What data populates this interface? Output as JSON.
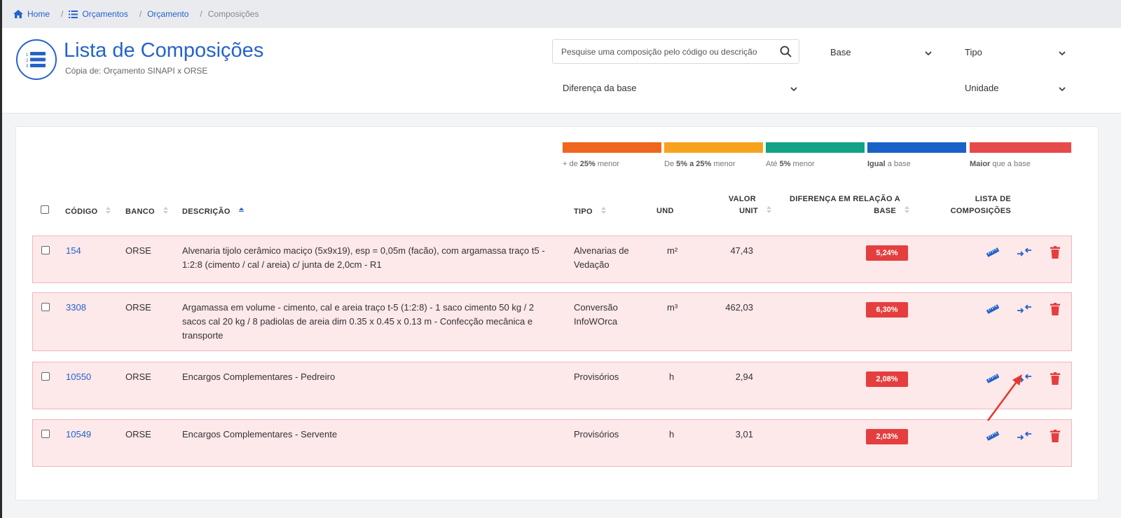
{
  "breadcrumb": [
    {
      "label": "Home",
      "icon": "home-icon"
    },
    {
      "label": "Orçamentos",
      "icon": "list-icon"
    },
    {
      "label": "Orçamento"
    },
    {
      "label": "Composições"
    }
  ],
  "header": {
    "title": "Lista de Composições",
    "subtitle": "Cópia de: Orçamento SINAPI x ORSE"
  },
  "search": {
    "placeholder": "Pesquise uma composição pelo código ou descrição"
  },
  "filters": {
    "base": "Base",
    "tipo": "Tipo",
    "diferenca": "Diferença da base",
    "unidade": "Unidade"
  },
  "legend": [
    {
      "pre": "+ de ",
      "bold": "25%",
      "post": " menor",
      "color": "#f0661e"
    },
    {
      "pre": "De ",
      "bold": "5% a 25%",
      "post": " menor",
      "color": "#f7a21c"
    },
    {
      "pre": "Até ",
      "bold": "5%",
      "post": " menor",
      "color": "#12a386"
    },
    {
      "pre": "",
      "bold": "Igual",
      "post": " a base",
      "color": "#1a62c8"
    },
    {
      "pre": "",
      "bold": "Maior",
      "post": " que a base",
      "color": "#e74a4a"
    }
  ],
  "columns": {
    "codigo": "CÓDIGO",
    "banco": "BANCO",
    "descricao": "DESCRIÇÃO",
    "tipo": "TIPO",
    "und": "UND",
    "valor_unit_1": "VALOR",
    "valor_unit_2": "UNIT",
    "diferenca_1": "DIFERENÇA EM RELAÇÃO A",
    "diferenca_2": "BASE",
    "lista_1": "LISTA DE",
    "lista_2": "COMPOSIÇÕES"
  },
  "rows": [
    {
      "codigo": "154",
      "banco": "ORSE",
      "descricao": [
        "Alvenaria tijolo cerâmico maciço (5x9x19), esp = 0,05m (facão), com argamassa traço t5 -",
        "1:2:8 (cimento / cal / areia) c/ junta de 2,0cm - R1"
      ],
      "tipo": [
        "Alvenarias de",
        "Vedação"
      ],
      "und": "m²",
      "valor": "47,43",
      "diferenca": "5,24%"
    },
    {
      "codigo": "3308",
      "banco": "ORSE",
      "descricao": [
        "Argamassa em volume - cimento, cal e areia traço t-5 (1:2:8) - 1 saco cimento 50 kg / 2",
        "sacos cal 20 kg / 8 padiolas de areia dim 0.35 x 0.45 x 0.13 m - Confecção mecânica e",
        "transporte"
      ],
      "tipo": [
        "Conversão",
        "InfoWOrca"
      ],
      "und": "m³",
      "valor": "462,03",
      "diferenca": "6,30%"
    },
    {
      "codigo": "10550",
      "banco": "ORSE",
      "descricao": [
        "Encargos Complementares - Pedreiro"
      ],
      "tipo": [
        "Provisórios"
      ],
      "und": "h",
      "valor": "2,94",
      "diferenca": "2,08%"
    },
    {
      "codigo": "10549",
      "banco": "ORSE",
      "descricao": [
        "Encargos Complementares - Servente"
      ],
      "tipo": [
        "Provisórios"
      ],
      "und": "h",
      "valor": "3,01",
      "diferenca": "2,03%"
    }
  ],
  "colors": {
    "accent": "#2563c9",
    "badge": "#e53e3e",
    "row_bg": "#fde8ea",
    "delete": "#e53e3e"
  }
}
